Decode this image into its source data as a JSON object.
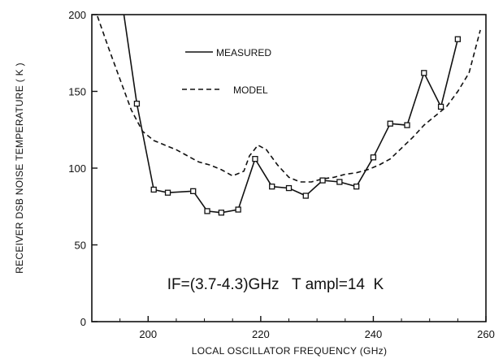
{
  "chart_data": {
    "type": "line",
    "title": "",
    "xlabel": "LOCAL OSCILLATOR FREQUENCY (GHz)",
    "ylabel": "RECEIVER DSB NOISE TEMPERATURE ( K )",
    "xlim": [
      190,
      260
    ],
    "ylim": [
      0,
      200
    ],
    "x_ticks": [
      200,
      220,
      240,
      260
    ],
    "y_ticks": [
      0,
      50,
      100,
      150,
      200
    ],
    "grid": false,
    "legend_position": "top-left",
    "annotation": "IF=(3.7-4.3)GHz   T ampl=14  K",
    "series": [
      {
        "name": "MEASURED",
        "style": "solid",
        "marker": "square",
        "x_extra_start": [
          195.5
        ],
        "y_extra_start": [
          205
        ],
        "x": [
          198,
          201,
          203.5,
          208,
          210.5,
          213,
          216,
          219,
          222,
          225,
          228,
          231,
          234,
          237,
          240,
          243,
          246,
          249,
          252,
          255
        ],
        "y": [
          142,
          86,
          84,
          85,
          72,
          71,
          73,
          106,
          88,
          87,
          82,
          92,
          91,
          88,
          107,
          129,
          128,
          162,
          140,
          184
        ]
      },
      {
        "name": "MODEL",
        "style": "dashed",
        "x": [
          191,
          193,
          195,
          197,
          199,
          201,
          203,
          205,
          207,
          209,
          211,
          213,
          215,
          217,
          218,
          219.5,
          221,
          223,
          225,
          227,
          229,
          231,
          233,
          235,
          237,
          239,
          241,
          243,
          245,
          247,
          249,
          251,
          253,
          255,
          257,
          259
        ],
        "y": [
          199,
          178,
          158,
          138,
          124,
          118,
          115,
          112,
          108,
          104,
          102,
          99,
          95,
          98,
          108,
          115,
          112,
          102,
          94,
          91,
          91,
          93,
          94,
          96,
          97,
          99,
          102,
          106,
          113,
          120,
          128,
          134,
          140,
          150,
          162,
          190
        ]
      }
    ]
  }
}
